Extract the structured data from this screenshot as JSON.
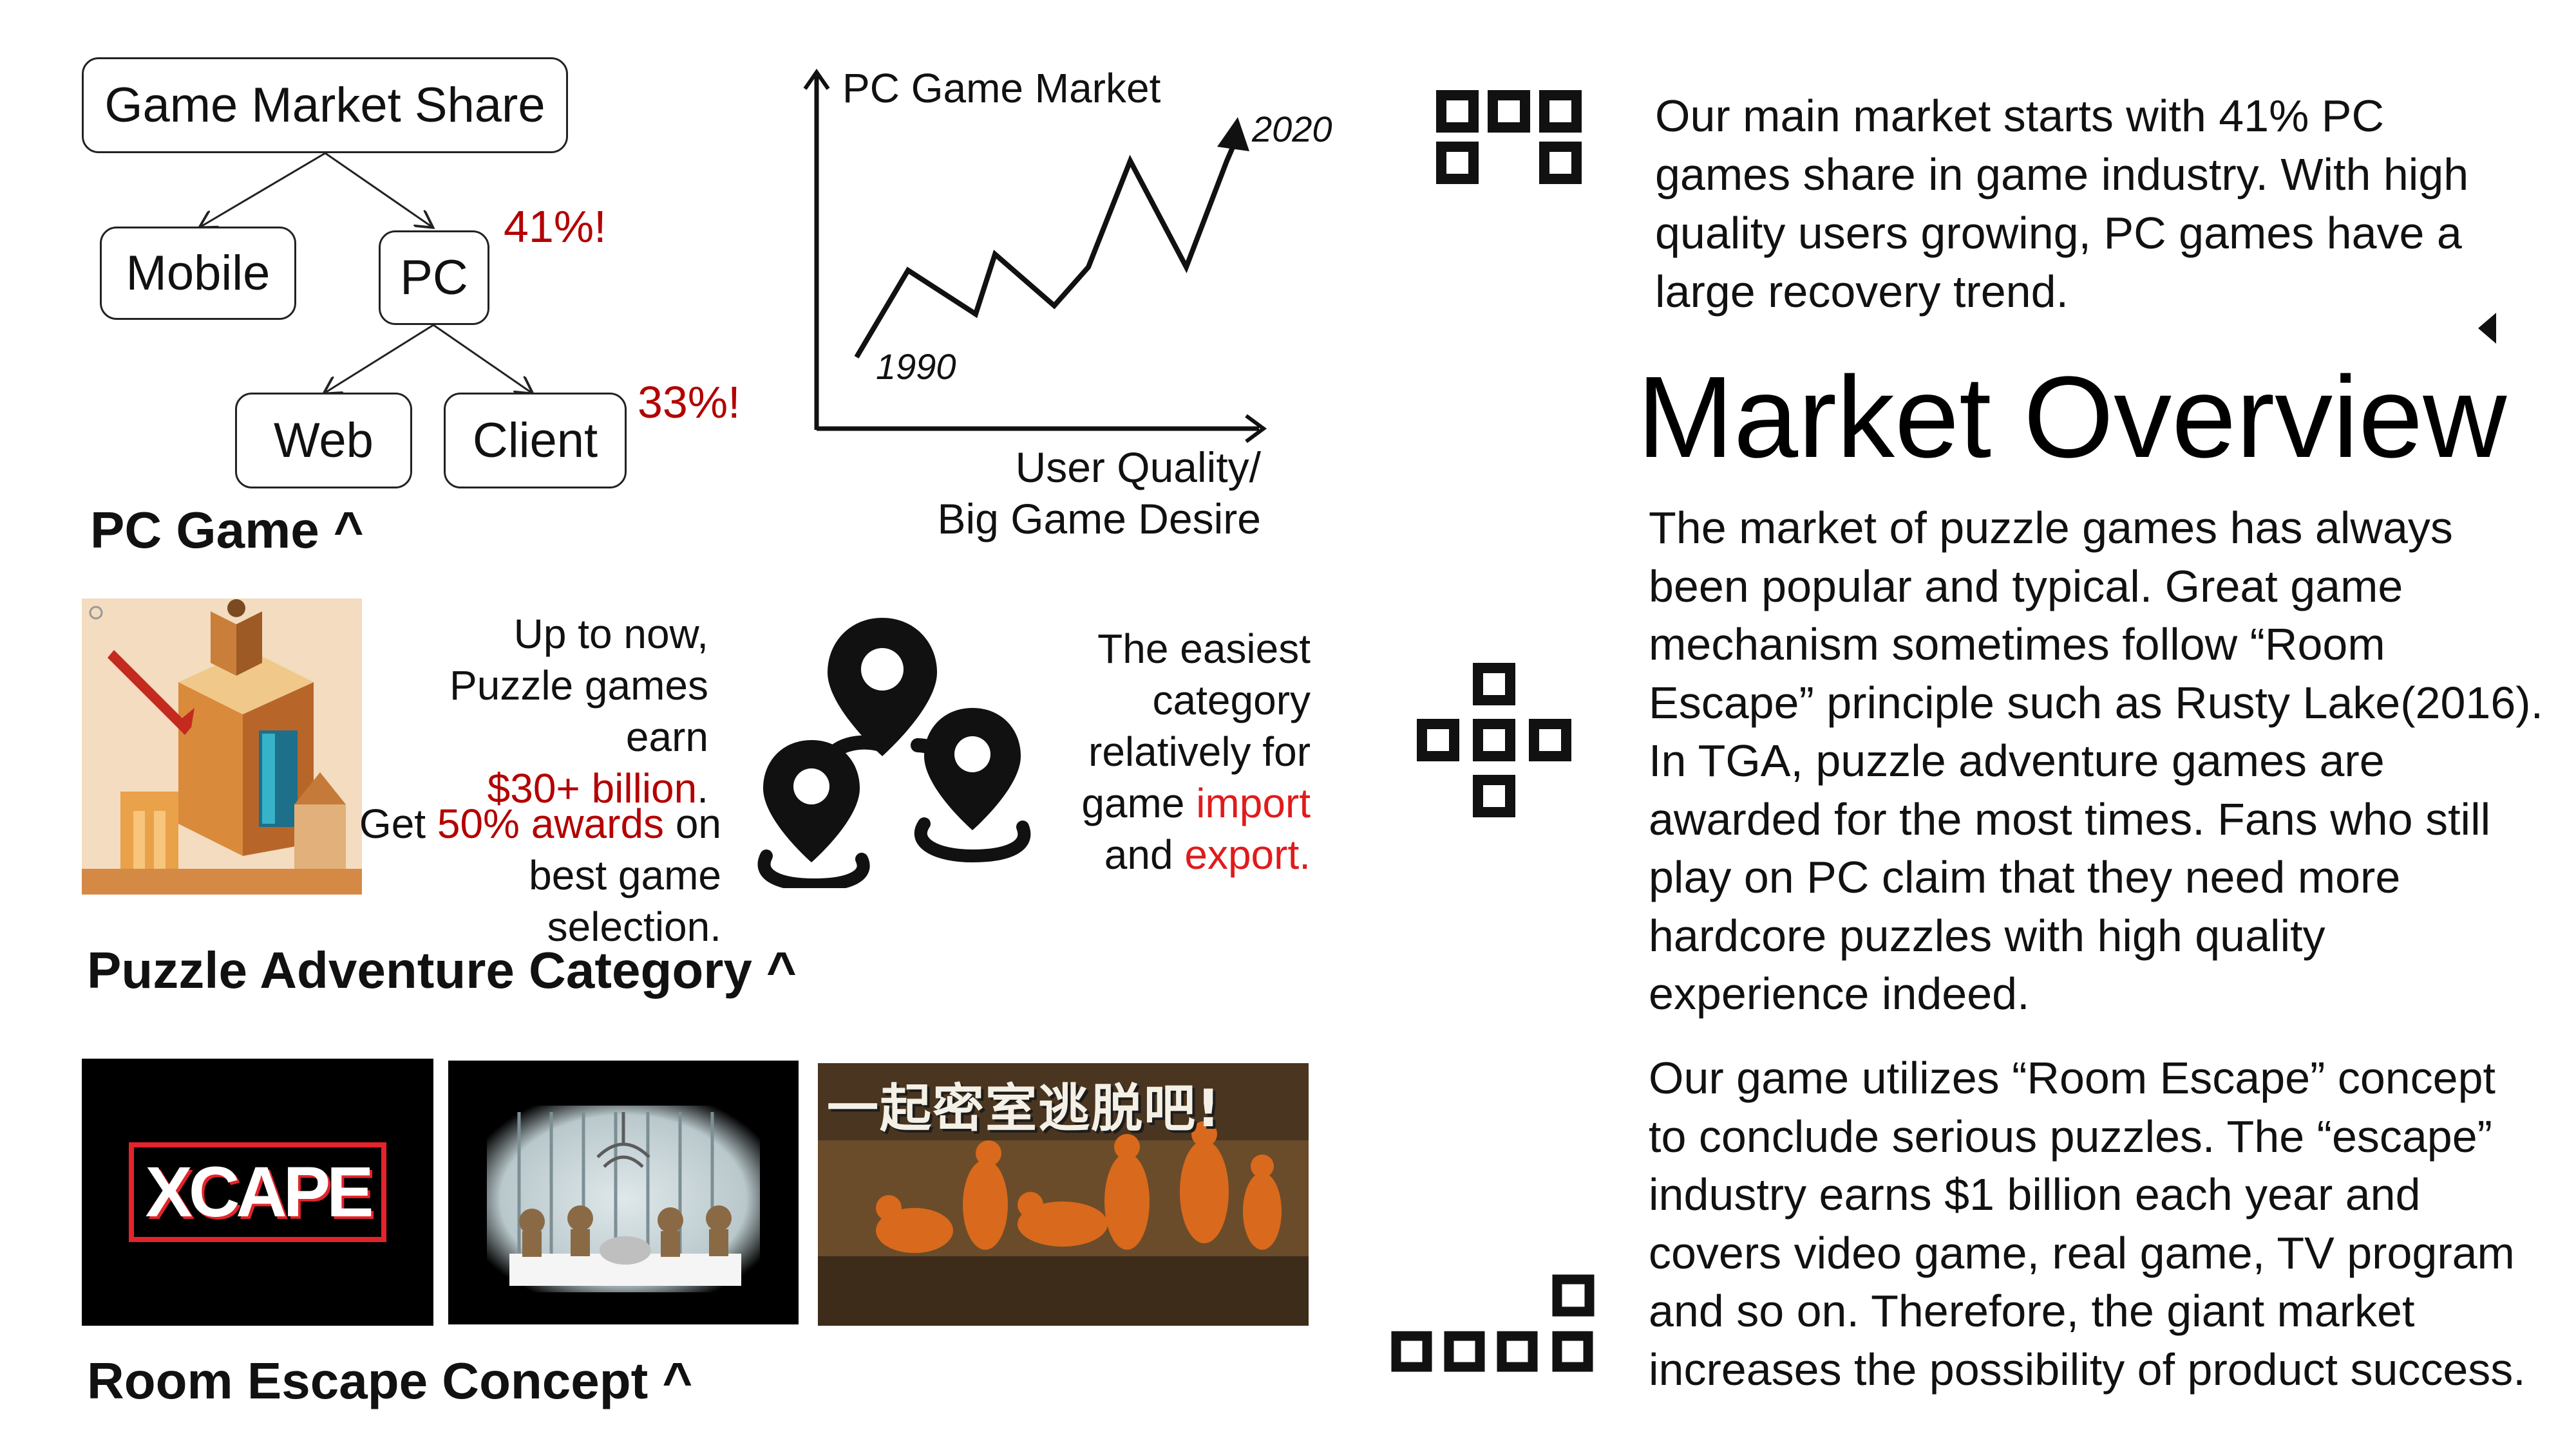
{
  "tree": {
    "root": "Game Market Share",
    "mobile": "Mobile",
    "pc": "PC",
    "pc_pct": "41%!",
    "web": "Web",
    "client": "Client",
    "client_pct": "33%!",
    "caption": "PC Game ^"
  },
  "trend": {
    "title": "PC Game Market",
    "start_label": "1990",
    "end_label": "2020",
    "xlabel_line1": "User Quality/",
    "xlabel_line2": "Big Game Desire"
  },
  "puzzle": {
    "line1": "Up to now,",
    "line2": "Puzzle games earn",
    "line3_red": "$30+ billion",
    "line3_end": ".",
    "line4_start": "Get ",
    "line4_red": "50% awards",
    "line4_end": " on",
    "line5": "best game selection.",
    "cat1": "The easiest",
    "cat2": "category",
    "cat3": "relatively for",
    "cat4_start": "game ",
    "cat4_red": "import",
    "cat5_start": "and ",
    "cat5_red": "export.",
    "caption": "Puzzle Adventure Category ^"
  },
  "room": {
    "xcape_logo": "XCAPE",
    "poster_title": "一起密室逃脱吧!",
    "caption": "Room Escape Concept ^"
  },
  "right": {
    "intro": "Our main market starts with 41% PC games share in game industry. With high quality users growing, PC games have a large recovery trend.",
    "title": "Market Overview",
    "para1": "The market of puzzle games has always been popular and typical. Great game mechanism sometimes follow “Room Escape” principle such as Rusty Lake(2016). In TGA, puzzle adventure games are awarded for the most times. Fans who still play on PC claim that they need more hardcore puzzles with high quality experience indeed.",
    "para2": "Our game utilizes “Room Escape” concept to conclude serious puzzles. The “escape” industry earns $1 billion each year and covers video game, real game, TV program and so on. Therefore, the giant market increases the possibility of product success."
  },
  "colors": {
    "red": "#b30000",
    "bright_red": "#e11b1b",
    "ink": "#111111"
  }
}
